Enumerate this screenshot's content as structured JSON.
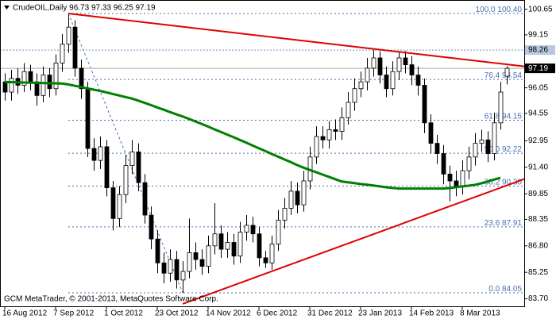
{
  "chart_data": {
    "type": "candlestick",
    "title": "CrudeOIL,Daily  96.73 97.33 96.25 97.19",
    "footer": "GCM MetaTrader, © 2001-2013, MetaQuotes Software Corp.",
    "categories": [
      "16 Aug 2012",
      null,
      null,
      null,
      null,
      null,
      null,
      null,
      "7 Sep 2012",
      null,
      null,
      null,
      null,
      null,
      null,
      null,
      "1 Oct 2012",
      null,
      null,
      null,
      null,
      null,
      null,
      null,
      "23 Oct 2012",
      null,
      null,
      null,
      null,
      null,
      null,
      null,
      "14 Nov 2012",
      null,
      null,
      null,
      null,
      null,
      null,
      null,
      "6 Dec 2012",
      null,
      null,
      null,
      null,
      null,
      null,
      null,
      "31 Dec 2012",
      null,
      null,
      null,
      null,
      null,
      null,
      null,
      "23 Jan 2013",
      null,
      null,
      null,
      null,
      null,
      null,
      null,
      "14 Feb 2013",
      null,
      null,
      null,
      null,
      null,
      null,
      null,
      "8 Mar 2013",
      null,
      null,
      null,
      null,
      null,
      null,
      null
    ],
    "open": [
      96.4,
      95.8,
      96.6,
      96.2,
      97.0,
      96.4,
      95.6,
      96.8,
      96.0,
      97.5,
      98.6,
      99.6,
      97.2,
      96.0,
      92.5,
      91.8,
      92.6,
      90.2,
      88.4,
      89.8,
      91.5,
      92.3,
      90.5,
      88.6,
      87.2,
      85.8,
      85.2,
      86.0,
      84.8,
      85.3,
      86.4,
      86.0,
      85.6,
      86.8,
      87.5,
      86.6,
      87.0,
      86.2,
      87.6,
      88.0,
      87.5,
      86.1,
      85.8,
      86.9,
      88.3,
      89.0,
      90.0,
      89.2,
      90.6,
      92.0,
      93.2,
      93.0,
      93.6,
      93.5,
      94.3,
      95.2,
      96.0,
      96.4,
      97.2,
      97.8,
      96.8,
      96.0,
      97.0,
      97.8,
      97.4,
      96.8,
      96.2,
      94.0,
      92.8,
      92.2,
      91.0,
      90.6,
      90.3,
      91.2,
      92.0,
      92.8,
      93.0,
      92.2,
      94.0,
      96.73
    ],
    "high": [
      96.9,
      97.1,
      97.2,
      97.5,
      97.4,
      96.9,
      97.3,
      97.2,
      98.0,
      99.2,
      100.4,
      100.0,
      97.7,
      96.4,
      93.1,
      93.2,
      93.0,
      90.6,
      90.3,
      92.1,
      93.0,
      92.8,
      91.0,
      89.1,
      87.7,
      86.4,
      86.6,
      86.5,
      85.9,
      88.4,
      87.0,
      86.6,
      87.4,
      89.3,
      88.0,
      87.6,
      87.5,
      88.2,
      88.6,
      88.5,
      87.9,
      86.5,
      87.4,
      88.9,
      89.6,
      90.6,
      90.5,
      91.2,
      92.6,
      93.8,
      93.8,
      94.1,
      94.2,
      94.9,
      95.8,
      96.6,
      97.0,
      97.8,
      98.26,
      98.2,
      97.3,
      97.6,
      98.2,
      98.2,
      97.9,
      97.3,
      96.6,
      94.5,
      93.3,
      92.7,
      91.5,
      91.2,
      91.8,
      92.6,
      93.4,
      93.6,
      93.5,
      94.6,
      96.4,
      97.33
    ],
    "low": [
      95.3,
      95.3,
      95.7,
      95.8,
      95.9,
      95.0,
      95.2,
      95.5,
      95.6,
      97.0,
      98.1,
      96.7,
      95.4,
      92.0,
      91.2,
      91.3,
      89.7,
      87.7,
      87.9,
      89.3,
      91.0,
      90.0,
      88.1,
      86.6,
      85.2,
      84.6,
      84.7,
      84.3,
      84.05,
      84.9,
      85.4,
      85.1,
      85.2,
      86.3,
      86.1,
      86.1,
      85.7,
      85.8,
      87.1,
      87.0,
      85.6,
      85.5,
      85.4,
      86.5,
      87.8,
      88.6,
      88.7,
      88.8,
      90.1,
      91.6,
      92.5,
      92.5,
      93.0,
      93.0,
      93.9,
      94.7,
      95.5,
      95.9,
      96.7,
      96.3,
      95.5,
      95.6,
      96.5,
      96.9,
      96.2,
      95.6,
      93.4,
      92.2,
      91.6,
      90.4,
      89.4,
      89.7,
      89.8,
      90.7,
      91.5,
      92.3,
      91.7,
      91.8,
      93.6,
      96.25
    ],
    "close": [
      95.8,
      96.6,
      96.2,
      97.0,
      96.4,
      95.6,
      96.8,
      96.0,
      97.5,
      98.6,
      99.6,
      97.2,
      96.0,
      92.5,
      91.8,
      92.6,
      90.2,
      88.4,
      89.8,
      91.5,
      92.3,
      90.5,
      88.6,
      87.2,
      85.8,
      85.2,
      86.0,
      84.8,
      85.3,
      86.4,
      86.0,
      85.6,
      86.8,
      87.5,
      86.6,
      87.0,
      86.2,
      87.6,
      88.0,
      87.5,
      86.1,
      85.8,
      86.9,
      88.3,
      89.0,
      90.0,
      89.2,
      90.6,
      92.0,
      93.2,
      93.0,
      93.6,
      93.5,
      94.3,
      95.2,
      96.0,
      96.4,
      97.2,
      97.8,
      96.8,
      96.0,
      97.0,
      97.8,
      97.4,
      96.8,
      96.2,
      94.0,
      92.8,
      92.2,
      91.0,
      90.6,
      90.3,
      91.2,
      92.0,
      92.8,
      93.0,
      92.2,
      94.0,
      95.8,
      97.19
    ],
    "ma": {
      "color": "#007f00",
      "values": [
        96.39,
        96.38,
        96.37,
        96.36,
        96.35,
        96.34,
        96.33,
        96.32,
        96.31,
        96.3,
        96.25,
        96.17,
        96.1,
        96.02,
        95.94,
        95.87,
        95.78,
        95.69,
        95.6,
        95.51,
        95.42,
        95.3,
        95.17,
        95.04,
        94.9,
        94.77,
        94.63,
        94.5,
        94.37,
        94.23,
        94.08,
        93.93,
        93.78,
        93.62,
        93.47,
        93.31,
        93.16,
        93.0,
        92.84,
        92.67,
        92.51,
        92.35,
        92.18,
        92.02,
        91.86,
        91.7,
        91.53,
        91.38,
        91.24,
        91.11,
        90.97,
        90.84,
        90.7,
        90.57,
        90.52,
        90.47,
        90.42,
        90.38,
        90.33,
        90.28,
        90.23,
        90.19,
        90.15,
        90.15,
        90.15,
        90.15,
        90.15,
        90.15,
        90.15,
        90.15,
        90.18,
        90.23,
        90.28,
        90.32,
        90.37,
        90.46,
        90.57,
        90.68,
        90.78,
        null
      ]
    },
    "trendlines": [
      {
        "color": "#e00000",
        "x": [
          10,
          86.75
        ],
        "y": [
          100.4,
          97.09
        ]
      },
      {
        "color": "#e00000",
        "x": [
          28,
          81.75
        ],
        "y": [
          83.4,
          90.71
        ]
      }
    ],
    "fibonacci": {
      "color": "#4a6fb0",
      "anchor_x": [
        10,
        28
      ],
      "levels": [
        {
          "ratio": {
            "value": 100,
            "label": "100.0"
          },
          "price": {
            "value": 100.4,
            "label": "100.40"
          }
        },
        {
          "ratio": 76.4,
          "price": 96.54
        },
        {
          "ratio": 61.8,
          "price": 94.15
        },
        {
          "ratio": {
            "value": 50,
            "label": "50.0"
          },
          "price": 92.22
        },
        {
          "ratio": 38.2,
          "price": {
            "value": 90.3,
            "label": "90.30"
          }
        },
        {
          "ratio": 23.6,
          "price": 87.91
        },
        {
          "ratio": {
            "value": 0,
            "label": "0.0"
          },
          "price": 84.05
        }
      ]
    },
    "hline": 98.26,
    "last_price": 97.19,
    "ylim": [
      83.26,
      101.19
    ],
    "yticks": [
      100.65,
      99.15,
      96.05,
      94.55,
      92.95,
      {
        "value": 91.4,
        "label": "91.40"
      },
      89.85,
      88.35,
      {
        "value": 86.8,
        "label": "86.80"
      },
      85.25,
      {
        "value": 83.7,
        "label": "83.70"
      }
    ],
    "up_color": "#ffffff",
    "down_color": "#000000"
  }
}
